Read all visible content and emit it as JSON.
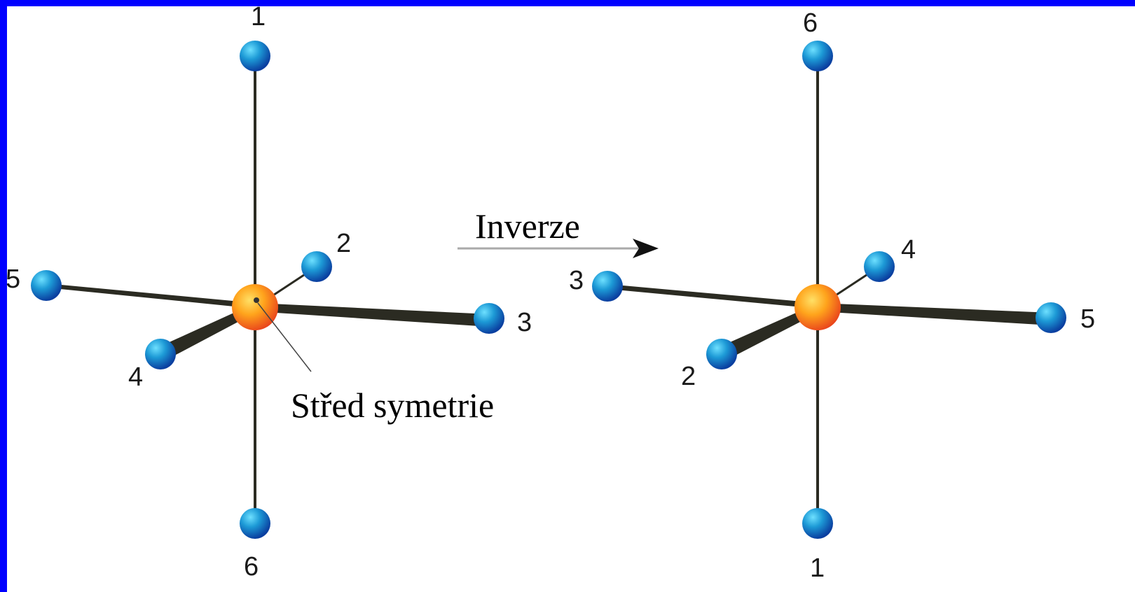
{
  "diagram": {
    "operation_label": "Inverze",
    "center_label": "Střed symetrie",
    "left_molecule": {
      "top": "1",
      "bottom": "6",
      "left": "5",
      "right": "3",
      "back": "2",
      "front": "4"
    },
    "right_molecule": {
      "top": "6",
      "bottom": "1",
      "left": "3",
      "right": "5",
      "back": "4",
      "front": "2"
    }
  },
  "colors": {
    "border": "#0000ff",
    "background": "#ffffff",
    "ligand_atom": "#1e88c8",
    "central_atom": "#f7941d",
    "bond": "#2b2b22"
  }
}
